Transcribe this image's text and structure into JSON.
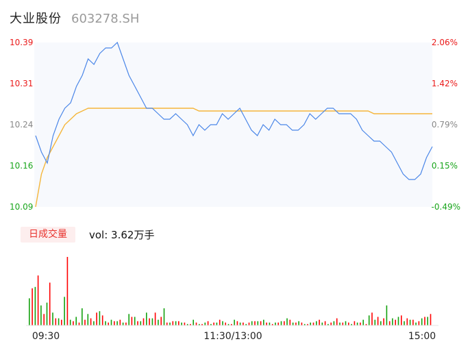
{
  "header": {
    "name": "大业股份",
    "code": "603278.SH"
  },
  "price_axis": {
    "left_labels": [
      "10.39",
      "10.31",
      "10.24",
      "10.16",
      "10.09"
    ],
    "right_labels": [
      "2.06%",
      "1.42%",
      "0.79%",
      "0.15%",
      "-0.49%"
    ]
  },
  "volume_panel": {
    "badge": "日成交量",
    "vol_text": "vol: 3.62万手"
  },
  "time_labels": [
    "09:30",
    "11:30/13:00",
    "15:00"
  ],
  "colors": {
    "up": "#ff0000",
    "down": "#13a10e",
    "price_line": "#4a86e8",
    "avg_line": "#f5b63a",
    "axis_up": "#ea1a1a",
    "axis_flat": "#888888",
    "axis_down": "#18a51b"
  },
  "chart_data": [
    {
      "type": "line",
      "title": "",
      "ylim": [
        10.09,
        10.39
      ],
      "x_ticks": [
        "09:30",
        "11:30/13:00",
        "15:00"
      ],
      "series": [
        {
          "name": "",
          "values": [
            10.22,
            10.19,
            10.17,
            10.22,
            10.25,
            10.27,
            10.28,
            10.31,
            10.33,
            10.36,
            10.35,
            10.37,
            10.38,
            10.38,
            10.39,
            10.36,
            10.33,
            10.31,
            10.29,
            10.27,
            10.27,
            10.26,
            10.25,
            10.25,
            10.26,
            10.25,
            10.24,
            10.22,
            10.24,
            10.23,
            10.24,
            10.24,
            10.26,
            10.25,
            10.26,
            10.27,
            10.25,
            10.23,
            10.22,
            10.24,
            10.23,
            10.25,
            10.24,
            10.24,
            10.23,
            10.23,
            10.24,
            10.26,
            10.25,
            10.26,
            10.27,
            10.27,
            10.26,
            10.26,
            10.26,
            10.25,
            10.23,
            10.22,
            10.21,
            10.21,
            10.2,
            10.19,
            10.17,
            10.15,
            10.14,
            10.14,
            10.15,
            10.18,
            10.2
          ]
        },
        {
          "name": "",
          "values": [
            10.09,
            10.15,
            10.18,
            10.2,
            10.22,
            10.24,
            10.25,
            10.26,
            10.265,
            10.27,
            10.27,
            10.27,
            10.27,
            10.27,
            10.27,
            10.27,
            10.27,
            10.27,
            10.27,
            10.27,
            10.27,
            10.27,
            10.27,
            10.27,
            10.27,
            10.27,
            10.27,
            10.27,
            10.265,
            10.265,
            10.265,
            10.265,
            10.265,
            10.265,
            10.265,
            10.265,
            10.265,
            10.265,
            10.265,
            10.265,
            10.265,
            10.265,
            10.265,
            10.265,
            10.265,
            10.265,
            10.265,
            10.265,
            10.265,
            10.265,
            10.265,
            10.265,
            10.265,
            10.265,
            10.265,
            10.265,
            10.265,
            10.265,
            10.26,
            10.26,
            10.26,
            10.26,
            10.26,
            10.26,
            10.26,
            10.26,
            10.26,
            10.26,
            10.26
          ]
        }
      ]
    },
    {
      "type": "bar",
      "title": "",
      "series": [
        {
          "name": "",
          "values": [
            26,
            35,
            8,
            30,
            5,
            4,
            48,
            3,
            2,
            4,
            5,
            9,
            7,
            2,
            3,
            4,
            2,
            6,
            3,
            5,
            5,
            9,
            6,
            2,
            3,
            3,
            2,
            1,
            2,
            1,
            3,
            2,
            4,
            2,
            1,
            3,
            2,
            2,
            3,
            3,
            2,
            1,
            2,
            3,
            4,
            2,
            2,
            1,
            2,
            4,
            3,
            2,
            5,
            2,
            2,
            3,
            2,
            1,
            9,
            6,
            5,
            3,
            4,
            7,
            5,
            4,
            3,
            6,
            8
          ]
        },
        {
          "name": "",
          "values": [
            19,
            27,
            14,
            16,
            9,
            5,
            20,
            4,
            6,
            12,
            8,
            3,
            10,
            3,
            4,
            3,
            2,
            8,
            6,
            3,
            9,
            5,
            4,
            12,
            2,
            3,
            2,
            1,
            4,
            1,
            2,
            1,
            2,
            3,
            1,
            4,
            2,
            1,
            3,
            3,
            4,
            2,
            2,
            3,
            5,
            2,
            3,
            1,
            2,
            3,
            2,
            1,
            3,
            2,
            3,
            1,
            2,
            4,
            7,
            4,
            3,
            14,
            5,
            6,
            3,
            4,
            2,
            5,
            6
          ]
        }
      ]
    }
  ]
}
